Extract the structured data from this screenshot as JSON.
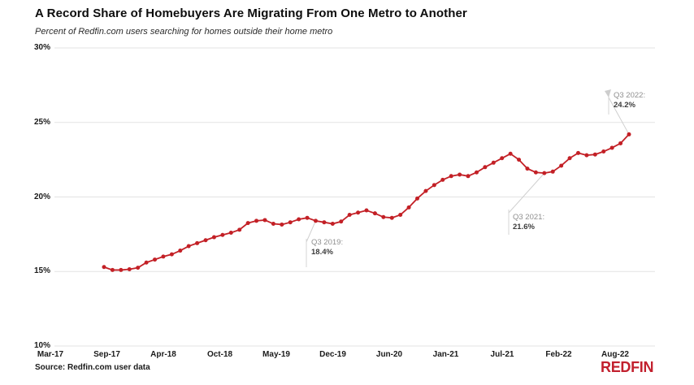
{
  "header": {
    "title": "A Record Share of Homebuyers Are Migrating From One Metro to Another",
    "subtitle": "Percent of Redfin.com users searching for homes outside their home metro"
  },
  "source": {
    "label": "Source: Redfin.com user data"
  },
  "logo": {
    "text": "REDFIN",
    "color": "#C2202E"
  },
  "chart_data": {
    "type": "line",
    "title": "A Record Share of Homebuyers Are Migrating From One Metro to Another",
    "subtitle": "Percent of Redfin.com users searching for homes outside their home metro",
    "unit": "%",
    "line_color": "#C32026",
    "marker_color": "#C32026",
    "grid": true,
    "grid_color": "#e3e3e3",
    "legend": "none",
    "ylim": [
      10,
      30
    ],
    "y_ticks": [
      30,
      25,
      20,
      15,
      10
    ],
    "y_tick_labels": [
      "30%",
      "25%",
      "20%",
      "15%",
      "10%"
    ],
    "x_tick_labels": [
      "Mar-17",
      "Sep-17",
      "Apr-18",
      "Oct-18",
      "May-19",
      "Dec-19",
      "Jun-20",
      "Jan-21",
      "Jul-21",
      "Feb-22",
      "Aug-22"
    ],
    "values": [
      15.3,
      15.1,
      15.1,
      15.15,
      15.25,
      15.6,
      15.8,
      16.0,
      16.15,
      16.4,
      16.7,
      16.9,
      17.1,
      17.3,
      17.45,
      17.6,
      17.8,
      18.25,
      18.4,
      18.45,
      18.2,
      18.15,
      18.3,
      18.5,
      18.6,
      18.4,
      18.3,
      18.2,
      18.35,
      18.8,
      18.95,
      19.1,
      18.9,
      18.65,
      18.6,
      18.8,
      19.3,
      19.9,
      20.4,
      20.8,
      21.15,
      21.4,
      21.5,
      21.4,
      21.65,
      22.0,
      22.3,
      22.6,
      22.9,
      22.5,
      21.9,
      21.65,
      21.6,
      21.7,
      22.1,
      22.6,
      22.95,
      22.8,
      22.85,
      23.05,
      23.3,
      23.6,
      24.2
    ],
    "annotations": [
      {
        "id": "q3-2019",
        "label": "Q3 2019:",
        "value": "18.4%",
        "point_index": 25
      },
      {
        "id": "q3-2021",
        "label": "Q3 2021:",
        "value": "21.6%",
        "point_index": 52
      },
      {
        "id": "q3-2022",
        "label": "Q3 2022:",
        "value": "24.2%",
        "point_index": 62
      }
    ]
  }
}
